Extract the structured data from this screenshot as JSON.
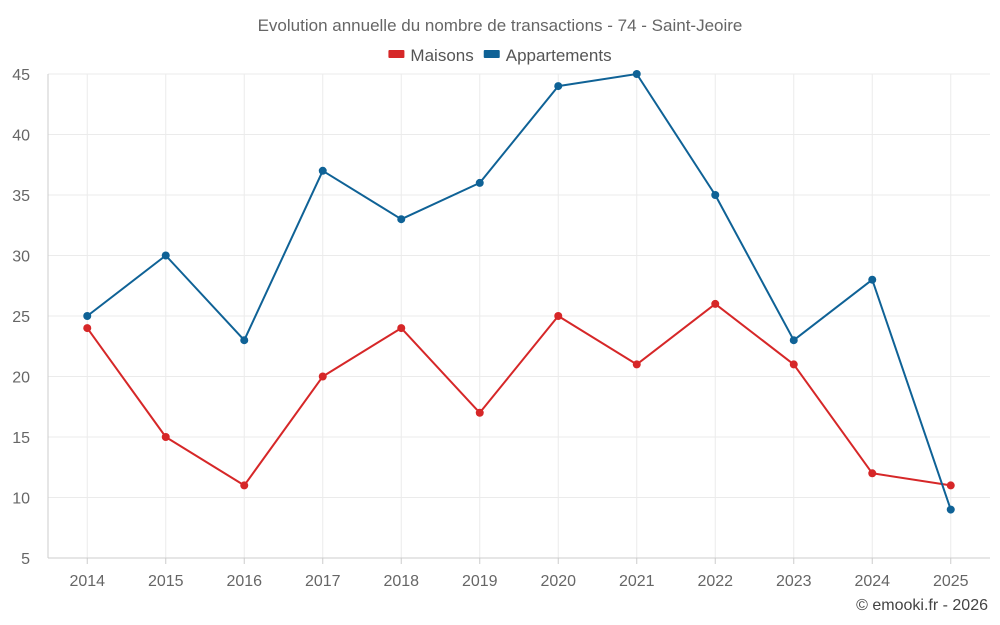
{
  "chart_data": {
    "type": "line",
    "title": "Evolution annuelle du nombre de transactions - 74 - Saint-Jeoire",
    "categories": [
      "2014",
      "2015",
      "2016",
      "2017",
      "2018",
      "2019",
      "2020",
      "2021",
      "2022",
      "2023",
      "2024",
      "2025"
    ],
    "series": [
      {
        "name": "Maisons",
        "color": "#d62728",
        "values": [
          24,
          15,
          11,
          20,
          24,
          17,
          25,
          21,
          26,
          21,
          12,
          11
        ]
      },
      {
        "name": "Appartements",
        "color": "#0f6296",
        "values": [
          25,
          30,
          23,
          37,
          33,
          36,
          44,
          45,
          35,
          23,
          28,
          9
        ]
      }
    ],
    "yticks": [
      5,
      10,
      15,
      20,
      25,
      30,
      35,
      40,
      45
    ],
    "ylim": [
      5,
      45
    ],
    "xlabel": "",
    "ylabel": "",
    "grid": true,
    "legend": "top-center"
  },
  "credit": "© emooki.fr - 2026"
}
